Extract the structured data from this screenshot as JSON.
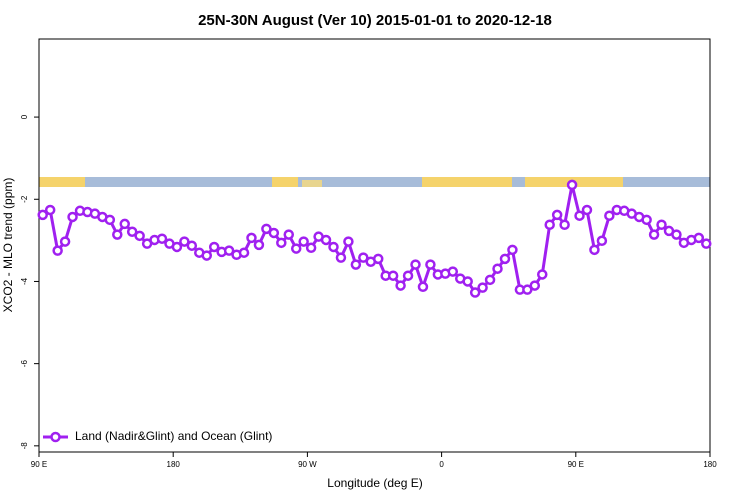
{
  "chart_data": {
    "type": "line",
    "title": "25N-30N August (Ver 10)   2015-01-01 to 2020-12-18",
    "x_label": "Longitude (deg E)",
    "y_label": "XCO2 - MLO trend (ppm)",
    "xlim": [
      90,
      540
    ],
    "ylim": [
      -8.15,
      1.9
    ],
    "xticks": [
      {
        "value": 90,
        "label": "90 E"
      },
      180,
      {
        "value": 270,
        "label": "90 W"
      },
      {
        "value": 360,
        "label": "0"
      },
      {
        "value": 450,
        "label": "90 E"
      },
      {
        "value": 540,
        "label": "180"
      }
    ],
    "yticks": [
      -8,
      -6,
      -4,
      -2,
      0
    ],
    "legend": "bottom-left",
    "series": [
      {
        "name": "Land (Nadir&Glint) and Ocean (Glint)",
        "color": "#a020f0",
        "x": [
          92.5,
          97.5,
          102.5,
          107.5,
          112.5,
          117.5,
          122.5,
          127.5,
          132.5,
          137.5,
          142.5,
          147.5,
          152.5,
          157.5,
          162.5,
          167.5,
          172.5,
          177.5,
          182.5,
          187.5,
          192.5,
          197.5,
          202.5,
          207.5,
          212.5,
          217.5,
          222.5,
          227.5,
          232.5,
          237.5,
          242.5,
          247.5,
          252.5,
          257.5,
          262.5,
          267.5,
          272.5,
          277.5,
          282.5,
          287.5,
          292.5,
          297.5,
          302.5,
          307.5,
          312.5,
          317.5,
          322.5,
          327.5,
          332.5,
          337.5,
          342.5,
          347.5,
          352.5,
          357.5,
          362.5,
          367.5,
          372.5,
          377.5,
          382.5,
          387.5,
          392.5,
          397.5,
          402.5,
          407.5,
          412.5,
          417.5,
          422.5,
          427.5,
          432.5,
          437.5,
          442.5,
          447.5,
          452.5,
          457.5,
          462.5,
          467.5,
          472.5,
          477.5,
          482.5,
          487.5,
          492.5,
          497.5,
          502.5,
          507.5,
          512.5,
          517.5,
          522.5,
          527.5,
          532.5,
          537.5
        ],
        "values": [
          -2.38,
          -2.26,
          -3.25,
          -3.03,
          -2.43,
          -2.28,
          -2.31,
          -2.35,
          -2.43,
          -2.5,
          -2.86,
          -2.6,
          -2.79,
          -2.89,
          -3.08,
          -2.99,
          -2.96,
          -3.08,
          -3.16,
          -3.03,
          -3.13,
          -3.3,
          -3.37,
          -3.16,
          -3.28,
          -3.25,
          -3.35,
          -3.3,
          -2.94,
          -3.11,
          -2.72,
          -2.82,
          -3.06,
          -2.86,
          -3.2,
          -3.03,
          -3.18,
          -2.91,
          -2.99,
          -3.16,
          -3.42,
          -3.03,
          -3.59,
          -3.42,
          -3.52,
          -3.45,
          -3.86,
          -3.86,
          -4.1,
          -3.86,
          -3.59,
          -4.13,
          -3.59,
          -3.83,
          -3.81,
          -3.76,
          -3.93,
          -4.0,
          -4.27,
          -4.15,
          -3.96,
          -3.69,
          -3.45,
          -3.23,
          -4.2,
          -4.2,
          -4.1,
          -3.83,
          -2.62,
          -2.38,
          -2.62,
          -1.65,
          -2.4,
          -2.26,
          -3.23,
          -3.01,
          -2.4,
          -2.26,
          -2.28,
          -2.35,
          -2.43,
          -2.5,
          -2.86,
          -2.62,
          -2.77,
          -2.86,
          -3.06,
          -2.99,
          -2.94,
          -3.08
        ]
      }
    ]
  }
}
